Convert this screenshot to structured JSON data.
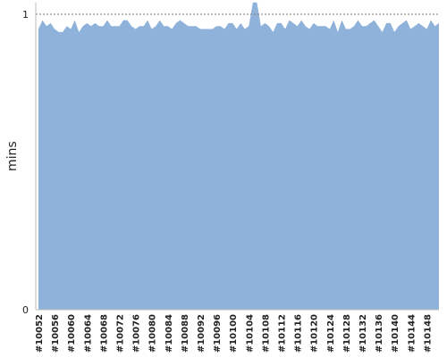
{
  "chart_data": {
    "type": "area",
    "y_label": "mins",
    "categories": [
      "#10052",
      null,
      null,
      null,
      "#10056",
      null,
      null,
      null,
      "#10060",
      null,
      null,
      null,
      "#10064",
      null,
      null,
      null,
      "#10068",
      null,
      null,
      null,
      "#10072",
      null,
      null,
      null,
      "#10076",
      null,
      null,
      null,
      "#10080",
      null,
      null,
      null,
      "#10084",
      null,
      null,
      null,
      "#10088",
      null,
      null,
      null,
      "#10092",
      null,
      null,
      null,
      "#10096",
      null,
      null,
      null,
      "#10100",
      null,
      null,
      null,
      "#10104",
      null,
      null,
      null,
      "#10108",
      null,
      null,
      null,
      "#10112",
      null,
      null,
      null,
      "#10116",
      null,
      null,
      null,
      "#10120",
      null,
      null,
      null,
      "#10124",
      null,
      null,
      null,
      "#10128",
      null,
      null,
      null,
      "#10132",
      null,
      null,
      null,
      "#10136",
      null,
      null,
      null,
      "#10140",
      null,
      null,
      null,
      "#10144",
      null,
      null,
      null,
      "#10148",
      null,
      null,
      null
    ],
    "values": [
      0.95,
      0.98,
      0.96,
      0.97,
      0.95,
      0.94,
      0.94,
      0.96,
      0.95,
      0.98,
      0.94,
      0.96,
      0.97,
      0.96,
      0.97,
      0.96,
      0.96,
      0.98,
      0.96,
      0.96,
      0.96,
      0.98,
      0.98,
      0.96,
      0.95,
      0.96,
      0.96,
      0.98,
      0.95,
      0.96,
      0.98,
      0.96,
      0.96,
      0.95,
      0.97,
      0.98,
      0.97,
      0.96,
      0.96,
      0.96,
      0.95,
      0.95,
      0.95,
      0.95,
      0.96,
      0.96,
      0.95,
      0.97,
      0.97,
      0.95,
      0.97,
      0.95,
      0.96,
      1.04,
      1.04,
      0.96,
      0.97,
      0.96,
      0.94,
      0.97,
      0.97,
      0.95,
      0.98,
      0.97,
      0.96,
      0.98,
      0.96,
      0.95,
      0.97,
      0.96,
      0.96,
      0.96,
      0.95,
      0.98,
      0.94,
      0.98,
      0.95,
      0.95,
      0.96,
      0.98,
      0.96,
      0.96,
      0.97,
      0.98,
      0.96,
      0.94,
      0.97,
      0.97,
      0.94,
      0.96,
      0.97,
      0.98,
      0.95,
      0.96,
      0.97,
      0.96,
      0.95,
      0.98,
      0.96,
      0.97
    ],
    "color": "#8fb2db",
    "ylim": [
      0,
      1.04
    ],
    "yticks": [
      0,
      1
    ],
    "grid": true
  }
}
